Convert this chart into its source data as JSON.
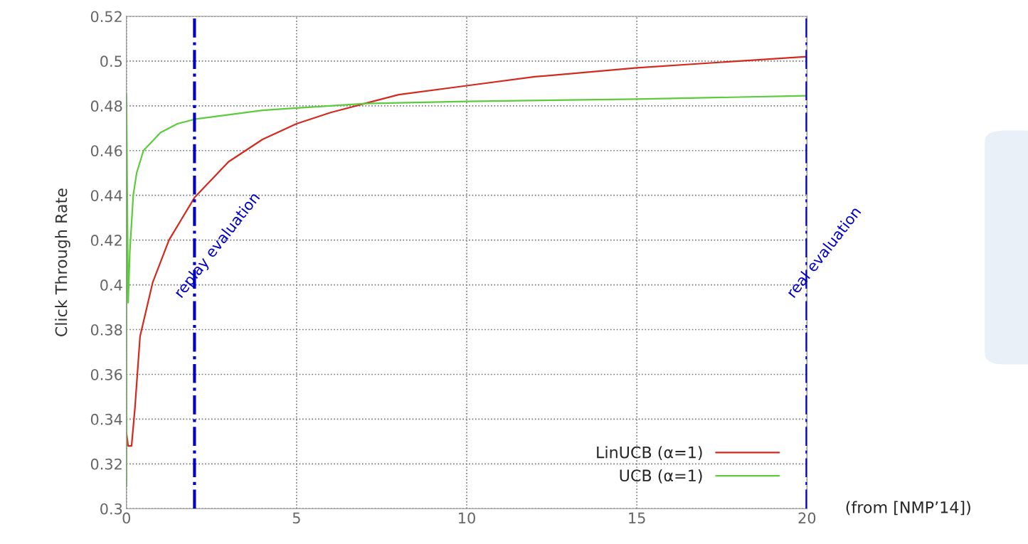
{
  "chart_data": {
    "type": "line",
    "ylabel": "Click Through Rate",
    "xlim": [
      0,
      20
    ],
    "xticks": [
      0,
      5,
      10,
      15,
      20
    ],
    "ylim": [
      0.3,
      0.52
    ],
    "yticks": [
      0.3,
      0.32,
      0.34,
      0.36,
      0.38,
      0.4,
      0.42,
      0.44,
      0.46,
      0.48,
      0.5,
      0.52
    ],
    "grid": true,
    "legend": "bottom right",
    "marker": "none",
    "line_style": "solid",
    "series": [
      {
        "name": "LinUCB (α=1)",
        "color": "#d42a1e",
        "x": [
          0,
          0.05,
          0.15,
          0.25,
          0.4,
          0.77,
          1.25,
          2,
          3,
          4,
          5,
          6,
          7,
          8,
          10,
          12,
          15,
          18,
          20
        ],
        "values": [
          0.334,
          0.328,
          0.328,
          0.345,
          0.377,
          0.401,
          0.42,
          0.439,
          0.455,
          0.465,
          0.472,
          0.477,
          0.481,
          0.485,
          0.489,
          0.493,
          0.497,
          0.5,
          0.502
        ]
      },
      {
        "name": "UCB (α=1)",
        "color": "#5ccb3c",
        "x": [
          0,
          0,
          0.05,
          0.1,
          0.2,
          0.3,
          0.5,
          1,
          1.5,
          2,
          3,
          4,
          5,
          7,
          10,
          15,
          20
        ],
        "values": [
          0.31,
          0.485,
          0.392,
          0.415,
          0.44,
          0.45,
          0.46,
          0.468,
          0.472,
          0.474,
          0.476,
          0.478,
          0.479,
          0.481,
          0.482,
          0.483,
          0.4845
        ]
      }
    ],
    "ref_lines": [
      {
        "axis": "x",
        "value": 2,
        "label": "replay evaluation",
        "color": "#0000cc",
        "line_style": "dashed"
      },
      {
        "axis": "x",
        "value": 20,
        "label": "real evaluation",
        "color": "#0000cc",
        "line_style": "dashed"
      }
    ],
    "annotations": [
      "(from [NMP’14])"
    ]
  }
}
